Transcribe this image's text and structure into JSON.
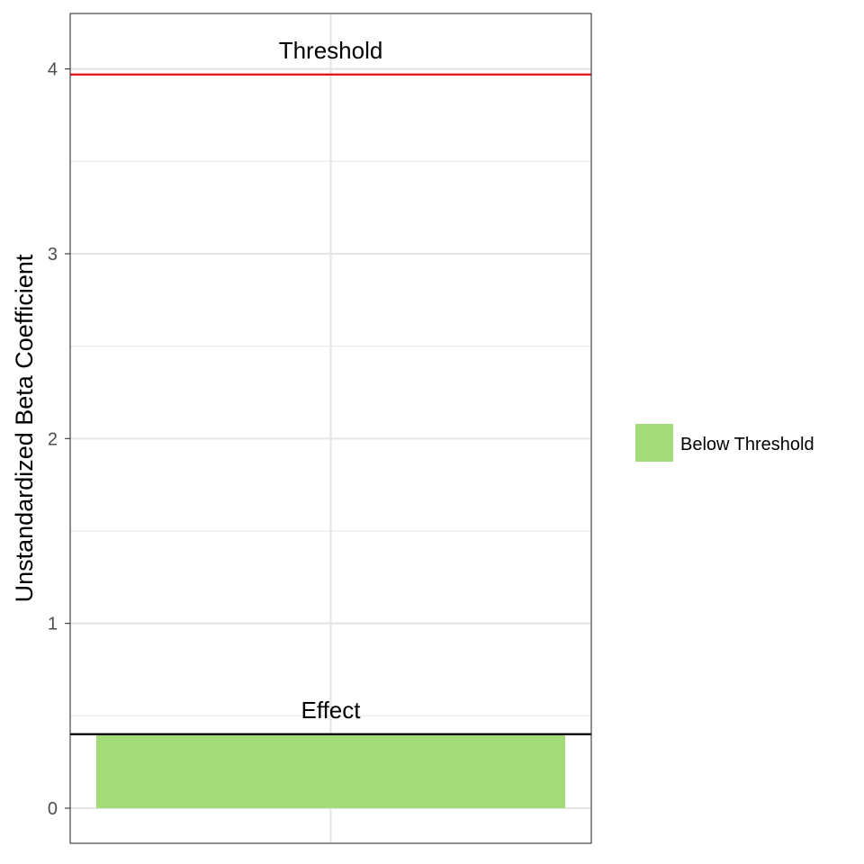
{
  "chart_data": {
    "type": "bar",
    "categories": [
      ""
    ],
    "series": [
      {
        "name": "Below Threshold",
        "values": [
          0.4
        ],
        "color": "#a3db78"
      }
    ],
    "xlabel": "",
    "ylabel": "Unstandardized Beta Coefficient",
    "ylim": [
      -0.19,
      4.3
    ],
    "yticks": [
      0,
      1,
      2,
      3,
      4
    ],
    "grid": true,
    "legend_position": "right",
    "reference_lines": [
      {
        "label": "Threshold",
        "value": 3.97,
        "color": "#e41a1c"
      },
      {
        "label": "Effect",
        "value": 0.4,
        "color": "#000000"
      }
    ]
  }
}
